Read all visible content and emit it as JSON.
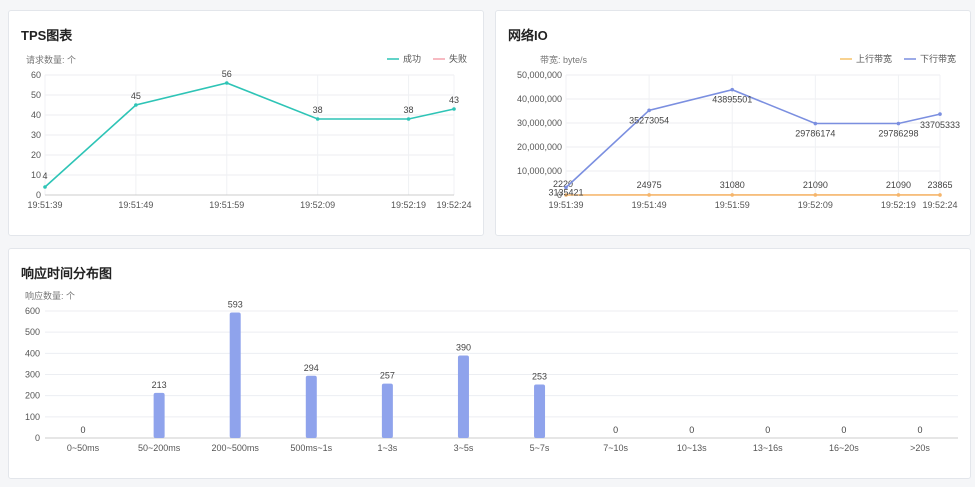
{
  "tps": {
    "title": "TPS图表",
    "ylabel": "请求数量: 个",
    "legend": [
      {
        "name": "成功",
        "color": "#2ec4b6"
      },
      {
        "name": "失败",
        "color": "#f4a3ad"
      }
    ],
    "chart_data": {
      "type": "line",
      "ylim": [
        0,
        60
      ],
      "y_ticks": [
        0,
        10,
        20,
        30,
        40,
        50,
        60
      ],
      "x_ticks": [
        "19:51:39",
        "19:51:49",
        "19:51:59",
        "19:52:09",
        "19:52:19",
        "19:52:24"
      ],
      "tick_offsets": [
        0,
        10,
        20,
        30,
        40,
        45
      ],
      "series": [
        {
          "name": "成功",
          "color": "#2ec4b6",
          "x": [
            0,
            10,
            20,
            30,
            40,
            45
          ],
          "values": [
            4,
            45,
            56,
            38,
            38,
            43
          ]
        }
      ]
    }
  },
  "netio": {
    "title": "网络IO",
    "ylabel": "带宽: byte/s",
    "legend": [
      {
        "name": "上行带宽",
        "color": "#f5c26b"
      },
      {
        "name": "下行带宽",
        "color": "#7b8fe0"
      }
    ],
    "chart_data": {
      "type": "line",
      "ylim": [
        0,
        50000000
      ],
      "y_ticks": [
        "0",
        "10,000,000",
        "20,000,000",
        "30,000,000",
        "40,000,000",
        "50,000,000"
      ],
      "x_ticks": [
        "19:51:39",
        "19:51:49",
        "19:51:59",
        "19:52:09",
        "19:52:19",
        "19:52:24"
      ],
      "tick_offsets": [
        0,
        10,
        20,
        30,
        40,
        45
      ],
      "series": [
        {
          "name": "上行带宽",
          "color": "#f5b56b",
          "x": [
            0,
            10,
            20,
            30,
            40,
            45
          ],
          "values": [
            2220,
            24975,
            31080,
            21090,
            21090,
            23865
          ],
          "labels": [
            "2220",
            "24975",
            "31080",
            "21090",
            "21090",
            "23865"
          ]
        },
        {
          "name": "下行带宽",
          "color": "#7b8fe0",
          "x": [
            0,
            10,
            20,
            30,
            40,
            45
          ],
          "values": [
            3135421,
            35273054,
            43895501,
            29786174,
            29786298,
            33705333
          ],
          "labels": [
            "3135421",
            "35273054",
            "43895501",
            "29786174",
            "29786298",
            "33705333"
          ]
        }
      ]
    }
  },
  "resp": {
    "title": "响应时间分布图",
    "ylabel": "响应数量: 个",
    "bar_color": "#8fa3ec",
    "chart_data": {
      "type": "bar",
      "ylim": [
        0,
        600
      ],
      "y_ticks": [
        0,
        100,
        200,
        300,
        400,
        500,
        600
      ],
      "categories": [
        "0~50ms",
        "50~200ms",
        "200~500ms",
        "500ms~1s",
        "1~3s",
        "3~5s",
        "5~7s",
        "7~10s",
        "10~13s",
        "13~16s",
        "16~20s",
        ">20s"
      ],
      "values": [
        0,
        213,
        593,
        294,
        257,
        390,
        253,
        0,
        0,
        0,
        0,
        0
      ]
    }
  }
}
